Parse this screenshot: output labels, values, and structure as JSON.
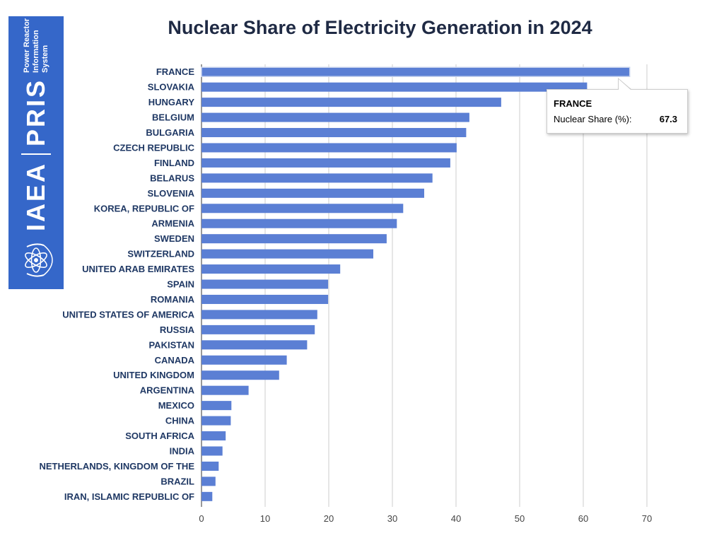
{
  "logo": {
    "iaea": "IAEA",
    "pris": "PRIS",
    "line1": "Power Reactor",
    "line2": "Information System",
    "color": "#3567c9"
  },
  "tooltip": {
    "title": "FRANCE",
    "label": "Nuclear Share (%):",
    "value": "67.3"
  },
  "chart_data": {
    "type": "bar",
    "orientation": "horizontal",
    "title": "Nuclear Share of Electricity Generation in 2024",
    "xlabel": "",
    "ylabel": "",
    "xlim": [
      0,
      70
    ],
    "xticks": [
      0,
      10,
      20,
      30,
      40,
      50,
      60,
      70
    ],
    "grid": true,
    "legend": "none",
    "bar_color": "#5b7fd4",
    "series": [
      {
        "name": "Nuclear Share (%)",
        "values": [
          67.3,
          60.6,
          47.1,
          42.1,
          41.6,
          40.1,
          39.1,
          36.3,
          35.0,
          31.7,
          30.7,
          29.1,
          27.0,
          21.8,
          19.9,
          19.9,
          18.2,
          17.8,
          16.6,
          13.4,
          12.2,
          7.4,
          4.7,
          4.6,
          3.8,
          3.3,
          2.7,
          2.2,
          1.7
        ]
      }
    ],
    "categories": [
      "FRANCE",
      "SLOVAKIA",
      "HUNGARY",
      "BELGIUM",
      "BULGARIA",
      "CZECH REPUBLIC",
      "FINLAND",
      "BELARUS",
      "SLOVENIA",
      "KOREA, REPUBLIC OF",
      "ARMENIA",
      "SWEDEN",
      "SWITZERLAND",
      "UNITED ARAB EMIRATES",
      "SPAIN",
      "ROMANIA",
      "UNITED STATES OF AMERICA",
      "RUSSIA",
      "PAKISTAN",
      "CANADA",
      "UNITED KINGDOM",
      "ARGENTINA",
      "MEXICO",
      "CHINA",
      "SOUTH AFRICA",
      "INDIA",
      "NETHERLANDS, KINGDOM OF THE",
      "BRAZIL",
      "IRAN, ISLAMIC REPUBLIC OF"
    ]
  }
}
